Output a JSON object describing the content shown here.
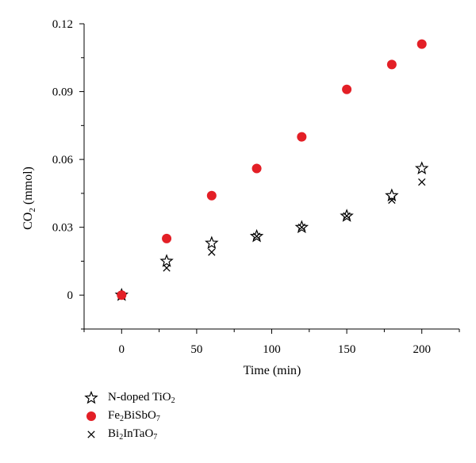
{
  "chart_data": {
    "type": "scatter",
    "xlabel": "Time (min)",
    "ylabel_main": "CO",
    "ylabel_sub": "2",
    "ylabel_unit": " (mmol)",
    "xlim": [
      -25,
      225
    ],
    "ylim": [
      -0.015,
      0.12
    ],
    "xticks": [
      0,
      50,
      100,
      150,
      200
    ],
    "yticks": [
      0,
      0.03,
      0.06,
      0.09,
      0.12
    ],
    "ytick_labels": [
      "0",
      "0.03",
      "0.06",
      "0.09",
      "0.12"
    ],
    "grid": false,
    "legend_position": "bottom-left",
    "series": [
      {
        "key": "ndoped",
        "name_parts": [
          [
            "N-doped TiO",
            ""
          ],
          [
            "2",
            "sub"
          ]
        ],
        "marker": "star",
        "color": "#000000",
        "x": [
          0,
          30,
          60,
          90,
          120,
          150,
          180,
          200
        ],
        "y": [
          0,
          0.015,
          0.023,
          0.026,
          0.03,
          0.035,
          0.044,
          0.056
        ]
      },
      {
        "key": "fe2bisbo7",
        "name_parts": [
          [
            "Fe",
            ""
          ],
          [
            "2",
            "sub"
          ],
          [
            "BiSbO",
            ""
          ],
          [
            "7",
            "sub"
          ]
        ],
        "marker": "circle",
        "color": "#e31f26",
        "x": [
          0,
          30,
          60,
          90,
          120,
          150,
          180,
          200
        ],
        "y": [
          0,
          0.025,
          0.044,
          0.056,
          0.07,
          0.091,
          0.102,
          0.111
        ]
      },
      {
        "key": "bi2intao7",
        "name_parts": [
          [
            "Bi",
            ""
          ],
          [
            "2",
            "sub"
          ],
          [
            "InTaO",
            ""
          ],
          [
            "7",
            "sub"
          ]
        ],
        "marker": "cross",
        "color": "#000000",
        "x": [
          0,
          30,
          60,
          90,
          120,
          150,
          180,
          200
        ],
        "y": [
          0,
          0.012,
          0.019,
          0.026,
          0.03,
          0.035,
          0.042,
          0.05
        ]
      }
    ]
  }
}
